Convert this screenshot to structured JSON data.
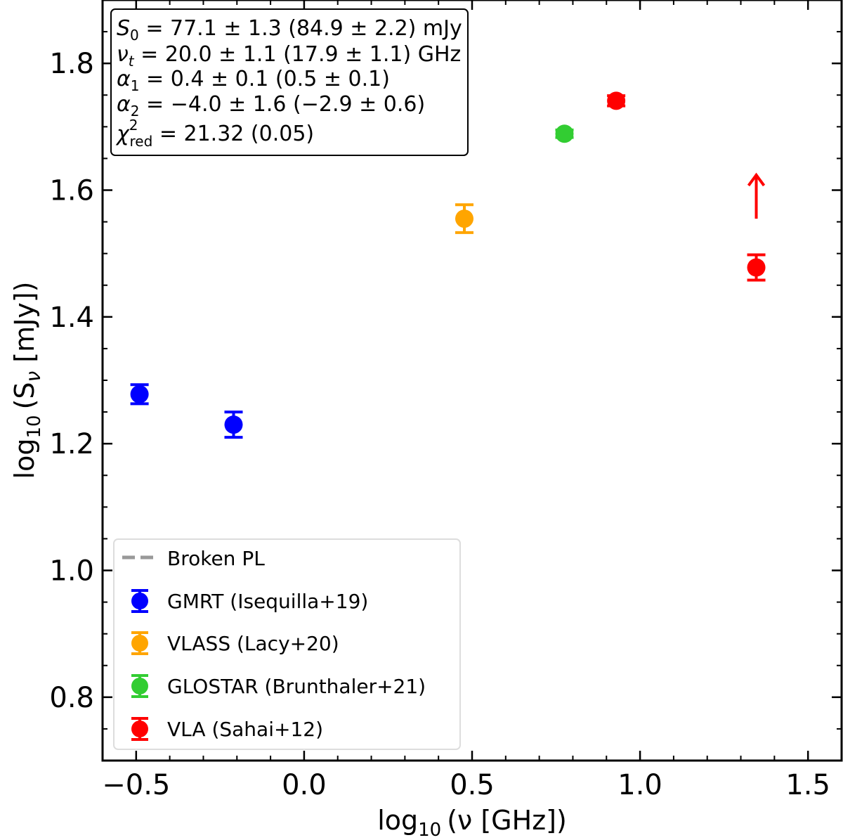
{
  "chart_data": {
    "type": "scatter",
    "title": "",
    "xlabel": {
      "main": "log",
      "sub": "10",
      "rest": "(ν [GHz])"
    },
    "ylabel": {
      "main": "log",
      "sub": "10",
      "mid": "(S",
      "sub2": "ν",
      "rest": " [mJy])"
    },
    "xlim": [
      -0.6,
      1.6
    ],
    "ylim": [
      0.7,
      1.9
    ],
    "xticks": [
      -0.5,
      0.0,
      0.5,
      1.0,
      1.5
    ],
    "xtick_labels": [
      "−0.5",
      "0.0",
      "0.5",
      "1.0",
      "1.5"
    ],
    "yticks": [
      0.8,
      1.0,
      1.2,
      1.4,
      1.6,
      1.8
    ],
    "ytick_labels": [
      "0.8",
      "1.0",
      "1.2",
      "1.4",
      "1.6",
      "1.8"
    ],
    "grid": false,
    "model": {
      "name": "Broken PL",
      "style": "dashed",
      "color": "#999999",
      "params": {
        "S0": 77.1,
        "nu_t": 20.0,
        "alpha1": 0.4,
        "alpha2": -4.0
      }
    },
    "series": [
      {
        "name": "GMRT (Isequilla+19)",
        "color": "#0000ff",
        "points": [
          {
            "x": -0.49,
            "y": 1.278,
            "err": 0.015
          },
          {
            "x": -0.21,
            "y": 1.23,
            "err": 0.02
          }
        ]
      },
      {
        "name": "VLASS (Lacy+20)",
        "color": "#ffa500",
        "points": [
          {
            "x": 0.477,
            "y": 1.555,
            "err": 0.022
          }
        ]
      },
      {
        "name": "GLOSTAR (Brunthaler+21)",
        "color": "#32cd32",
        "points": [
          {
            "x": 0.775,
            "y": 1.689,
            "err": 0.006
          }
        ]
      },
      {
        "name": "VLA (Sahai+12)",
        "color": "#ff0000",
        "points": [
          {
            "x": 0.929,
            "y": 1.741,
            "err": 0.008
          },
          {
            "x": 1.346,
            "y": 1.478,
            "err": 0.02
          }
        ]
      }
    ],
    "annotations": [
      {
        "type": "arrow",
        "direction": "up",
        "x": 1.346,
        "y_from": 1.555,
        "y_to": 1.625,
        "color": "#ff0000"
      }
    ],
    "stats_box": {
      "lines": [
        {
          "sym": "S",
          "sub": "0",
          "sup": "",
          "text": " = 77.1 ± 1.3 (84.9 ± 2.2) mJy"
        },
        {
          "sym": "ν",
          "sub": "t",
          "sup": "",
          "text": " = 20.0 ± 1.1 (17.9 ± 1.1) GHz"
        },
        {
          "sym": "α",
          "sub": "1",
          "sup": "",
          "text": " = 0.4 ± 0.1 (0.5 ± 0.1)"
        },
        {
          "sym": "α",
          "sub": "2",
          "sup": "",
          "text": " = −4.0 ± 1.6 (−2.9 ± 0.6)"
        },
        {
          "sym": "χ",
          "sub": "red",
          "sup": "2",
          "text": " = 21.32 (0.05)"
        }
      ]
    },
    "legend": {
      "placement": "lower-left",
      "entries": [
        {
          "label": "Broken PL",
          "kind": "line",
          "color": "#999999"
        },
        {
          "label": "GMRT (Isequilla+19)",
          "kind": "marker",
          "color": "#0000ff"
        },
        {
          "label": "VLASS (Lacy+20)",
          "kind": "marker",
          "color": "#ffa500"
        },
        {
          "label": "GLOSTAR (Brunthaler+21)",
          "kind": "marker",
          "color": "#32cd32"
        },
        {
          "label": "VLA (Sahai+12)",
          "kind": "marker",
          "color": "#ff0000"
        }
      ]
    }
  }
}
